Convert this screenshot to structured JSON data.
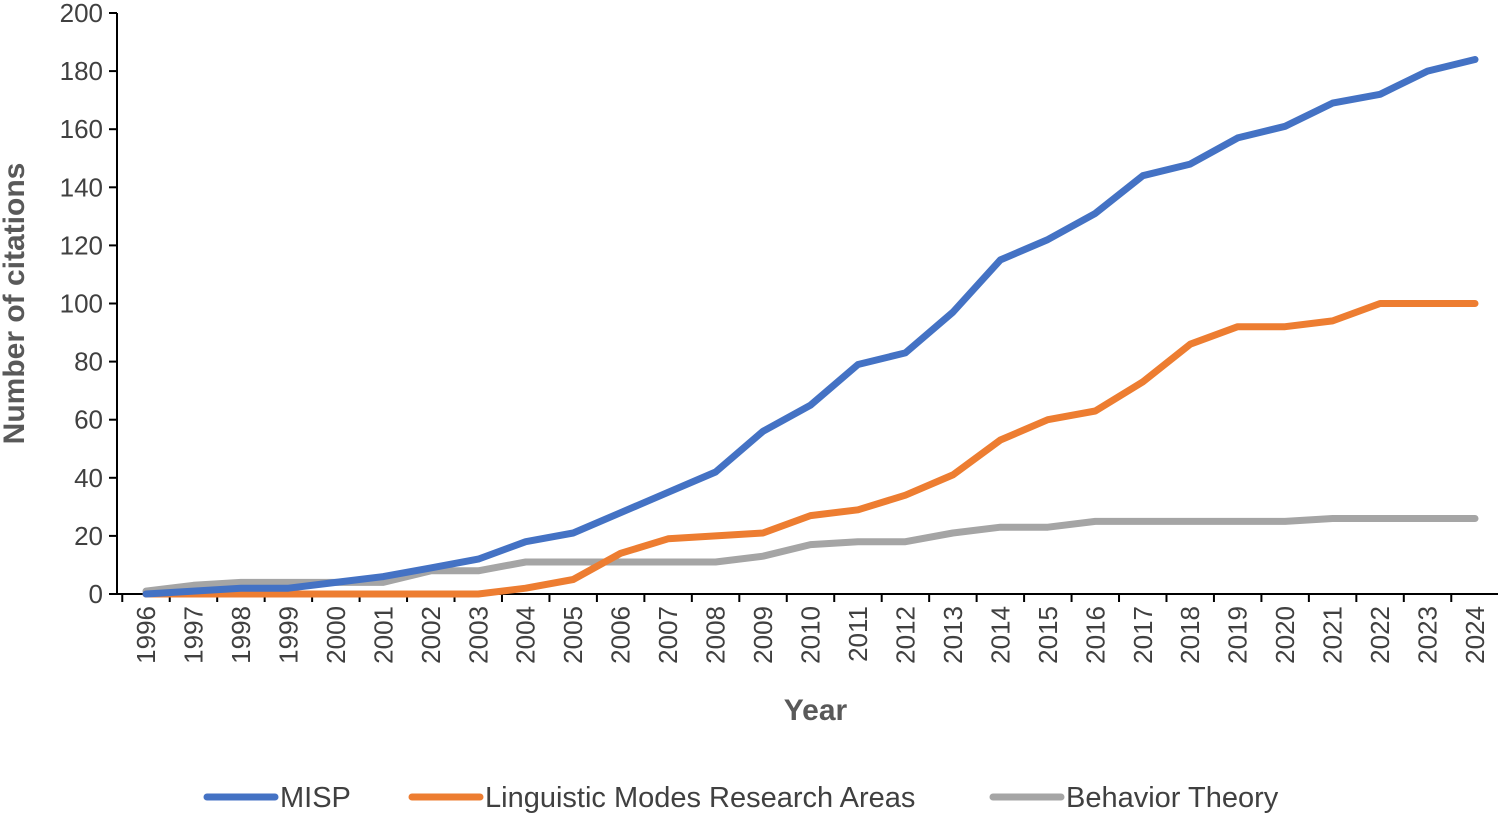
{
  "chart_data": {
    "type": "line",
    "title": "",
    "xlabel": "Year",
    "ylabel": "Number of citations",
    "ylim": [
      0,
      200
    ],
    "yticks": [
      "0",
      "20",
      "40",
      "60",
      "80",
      "100",
      "120",
      "140",
      "160",
      "180",
      "200"
    ],
    "categories": [
      "1996",
      "1997",
      "1998",
      "1999",
      "2000",
      "2001",
      "2002",
      "2003",
      "2004",
      "2005",
      "2006",
      "2007",
      "2008",
      "2009",
      "2010",
      "2011",
      "2012",
      "2013",
      "2014",
      "2015",
      "2016",
      "2017",
      "2018",
      "2019",
      "2020",
      "2021",
      "2022",
      "2023",
      "2024"
    ],
    "grid": false,
    "legend_position": "bottom",
    "series": [
      {
        "name": "MISP",
        "color": "#4472C4",
        "values": [
          0,
          1,
          2,
          2,
          4,
          6,
          9,
          12,
          18,
          21,
          28,
          35,
          42,
          56,
          65,
          79,
          83,
          97,
          115,
          122,
          131,
          144,
          148,
          157,
          161,
          169,
          172,
          180,
          184
        ]
      },
      {
        "name": "Linguistic Modes Research Areas",
        "color": "#ED7D31",
        "values": [
          0,
          0,
          0,
          0,
          0,
          0,
          0,
          0,
          2,
          5,
          14,
          19,
          20,
          21,
          27,
          29,
          34,
          41,
          53,
          60,
          63,
          73,
          86,
          92,
          92,
          94,
          100,
          100,
          100
        ]
      },
      {
        "name": "Behavior Theory",
        "color": "#A5A5A5",
        "values": [
          1,
          3,
          4,
          4,
          4,
          4,
          8,
          8,
          11,
          11,
          11,
          11,
          11,
          13,
          17,
          18,
          18,
          21,
          23,
          23,
          25,
          25,
          25,
          25,
          25,
          26,
          26,
          26,
          26
        ]
      }
    ]
  }
}
